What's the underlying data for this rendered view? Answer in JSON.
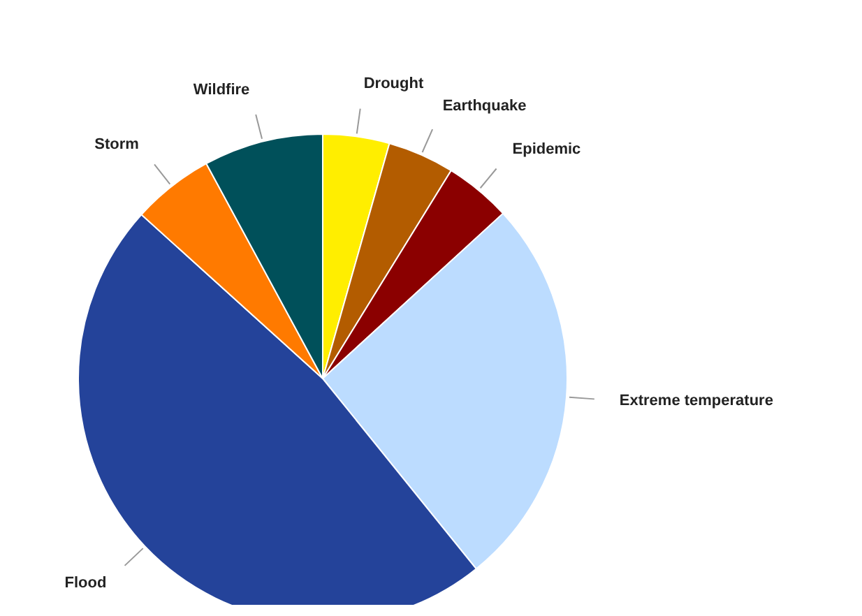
{
  "chart_data": {
    "type": "pie",
    "categories": [
      "Drought",
      "Earthquake",
      "Epidemic",
      "Extreme temperature",
      "Flood",
      "Storm",
      "Wildfire"
    ],
    "values": [
      4.4,
      4.4,
      4.4,
      26,
      47.5,
      5.4,
      7.9
    ],
    "colors": [
      "#ffee00",
      "#b35c00",
      "#8b0000",
      "#bcdcff",
      "#24439a",
      "#ff7a00",
      "#00505a"
    ],
    "legend": false
  }
}
